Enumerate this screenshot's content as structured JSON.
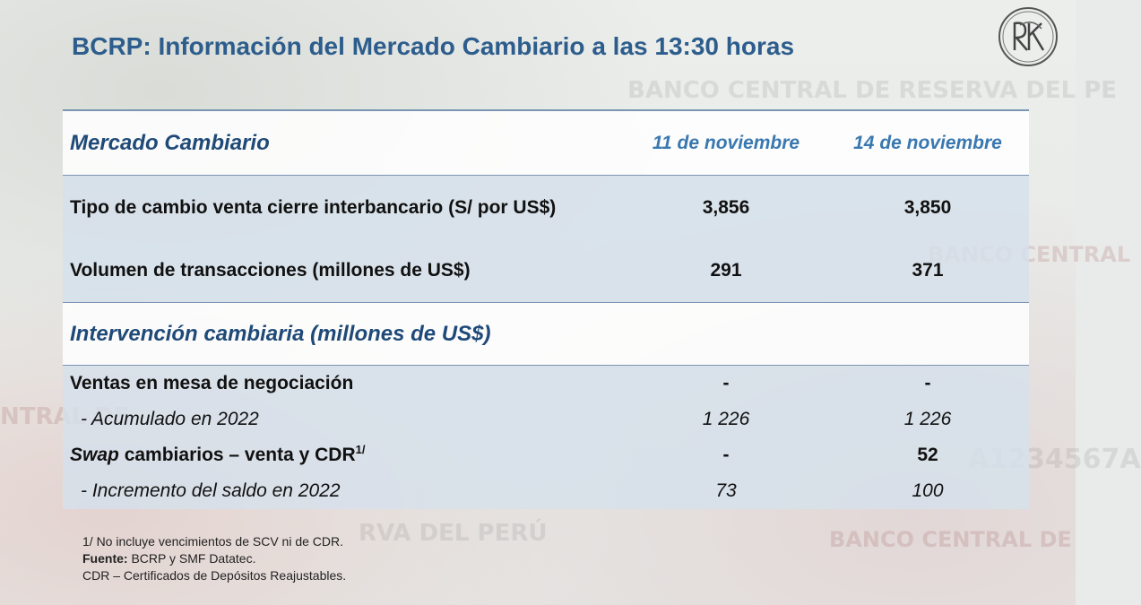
{
  "title": "BCRP: Información del Mercado Cambiario a las 13:30 horas",
  "background_text": {
    "wm1": "BANCO CENTRAL DE RESERVA DEL PE",
    "wm2": "BANCO CENTRAL",
    "wm3": "BANCO CENTRAL DE",
    "wm4": "RVA DEL PERÚ",
    "wm5": "A1234567A",
    "wm6": "NTRAL DE"
  },
  "table": {
    "header": {
      "label": "Mercado Cambiario",
      "col1": "11 de noviembre",
      "col2": "14 de noviembre"
    },
    "rows": [
      {
        "label": "Tipo de cambio venta cierre interbancario (S/ por US$)",
        "v1": "3,856",
        "v2": "3,850"
      },
      {
        "label": "Volumen de transacciones (millones de US$)",
        "v1": "291",
        "v2": "371"
      }
    ],
    "section": "Intervención cambiaria (millones de US$)",
    "sub_rows": [
      {
        "label": "Ventas en mesa de negociación",
        "v1": "-",
        "v2": "-"
      },
      {
        "label": "-  Acumulado en 2022",
        "v1": "1 226",
        "v2": "1 226"
      },
      {
        "label_italic": "Swap",
        "label_rest": " cambiarios – venta y CDR",
        "label_sup": "1/",
        "v1": "-",
        "v2": "52"
      },
      {
        "label": "-  Incremento del saldo en 2022",
        "v1": "73",
        "v2": "100"
      }
    ]
  },
  "notes": {
    "n1": "1/ No incluye vencimientos de SCV ni de CDR.",
    "source_label": "Fuente:",
    "source_text": " BCRP y SMF Datatec.",
    "n3": "CDR – Certificados de Depósitos Reajustables."
  },
  "colors": {
    "title": "#2d5d8c",
    "header_dates": "#3a78b0",
    "shade": "#d6e0ec",
    "rule": "#7b95b3"
  },
  "icons": {
    "logo": "bcrp-monogram-logo"
  }
}
